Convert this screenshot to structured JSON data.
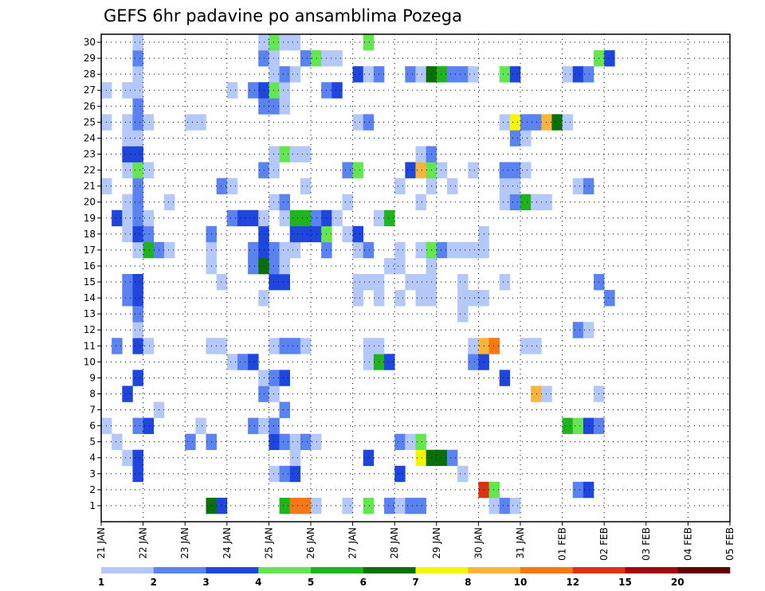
{
  "chart_data": {
    "type": "heatmap",
    "title": "GEFS 6hr padavine po ansamblima Pozega",
    "xlabel": "",
    "ylabel": "",
    "x_tick_labels": [
      "21 JAN",
      "22 JAN",
      "23 JAN",
      "24 JAN",
      "25 JAN",
      "26 JAN",
      "27 JAN",
      "28 JAN",
      "29 JAN",
      "30 JAN",
      "31 JAN",
      "01 FEB",
      "02 FEB",
      "03 FEB",
      "04 FEB",
      "05 FEB"
    ],
    "y_tick_labels": [
      "1",
      "2",
      "3",
      "4",
      "5",
      "6",
      "7",
      "8",
      "9",
      "10",
      "11",
      "12",
      "13",
      "14",
      "15",
      "16",
      "17",
      "18",
      "19",
      "20",
      "21",
      "22",
      "23",
      "24",
      "25",
      "26",
      "27",
      "28",
      "29",
      "30"
    ],
    "time_steps_per_day": 4,
    "n_time_steps": 60,
    "n_members": 30,
    "grid": true,
    "colorbar": {
      "labels": [
        "1",
        "2",
        "3",
        "4",
        "5",
        "6",
        "7",
        "8",
        "10",
        "12",
        "15",
        "20"
      ],
      "colors": [
        "#b4c8fa",
        "#5a82f0",
        "#1e46dc",
        "#64e650",
        "#1eb41e",
        "#0a700a",
        "#f5f50a",
        "#fab43c",
        "#f57814",
        "#dc3214",
        "#a00a0a",
        "#640000"
      ]
    },
    "cells": [
      [
        1,
        10,
        5
      ],
      [
        1,
        11,
        2
      ],
      [
        1,
        17,
        4
      ],
      [
        1,
        18,
        8
      ],
      [
        1,
        19,
        8
      ],
      [
        1,
        20,
        0
      ],
      [
        1,
        23,
        0
      ],
      [
        1,
        25,
        3
      ],
      [
        1,
        27,
        1
      ],
      [
        1,
        28,
        0
      ],
      [
        1,
        29,
        1
      ],
      [
        1,
        30,
        1
      ],
      [
        1,
        37,
        0
      ],
      [
        1,
        38,
        1
      ],
      [
        1,
        39,
        0
      ],
      [
        2,
        36,
        9
      ],
      [
        2,
        37,
        3
      ],
      [
        2,
        45,
        1
      ],
      [
        2,
        46,
        2
      ],
      [
        3,
        3,
        2
      ],
      [
        3,
        16,
        0
      ],
      [
        3,
        17,
        1
      ],
      [
        3,
        18,
        2
      ],
      [
        3,
        28,
        2
      ],
      [
        3,
        34,
        0
      ],
      [
        4,
        2,
        0
      ],
      [
        4,
        3,
        2
      ],
      [
        4,
        18,
        0
      ],
      [
        4,
        25,
        2
      ],
      [
        4,
        30,
        6
      ],
      [
        4,
        31,
        5
      ],
      [
        4,
        32,
        5
      ],
      [
        4,
        33,
        1
      ],
      [
        5,
        1,
        0
      ],
      [
        5,
        8,
        1
      ],
      [
        5,
        10,
        1
      ],
      [
        5,
        16,
        2
      ],
      [
        5,
        17,
        1
      ],
      [
        5,
        18,
        0
      ],
      [
        5,
        19,
        1
      ],
      [
        5,
        20,
        0
      ],
      [
        5,
        28,
        1
      ],
      [
        5,
        29,
        0
      ],
      [
        5,
        30,
        3
      ],
      [
        6,
        0,
        0
      ],
      [
        6,
        3,
        1
      ],
      [
        6,
        4,
        2
      ],
      [
        6,
        9,
        0
      ],
      [
        6,
        14,
        1
      ],
      [
        6,
        15,
        0
      ],
      [
        6,
        16,
        1
      ],
      [
        6,
        44,
        4
      ],
      [
        6,
        45,
        3
      ],
      [
        6,
        46,
        2
      ],
      [
        6,
        47,
        1
      ],
      [
        7,
        5,
        0
      ],
      [
        7,
        17,
        1
      ],
      [
        8,
        2,
        2
      ],
      [
        8,
        15,
        1
      ],
      [
        8,
        16,
        0
      ],
      [
        8,
        41,
        7
      ],
      [
        8,
        42,
        0
      ],
      [
        8,
        47,
        0
      ],
      [
        9,
        3,
        2
      ],
      [
        9,
        15,
        0
      ],
      [
        9,
        16,
        1
      ],
      [
        9,
        17,
        2
      ],
      [
        9,
        38,
        2
      ],
      [
        10,
        12,
        0
      ],
      [
        10,
        13,
        1
      ],
      [
        10,
        14,
        2
      ],
      [
        10,
        25,
        0
      ],
      [
        10,
        26,
        4
      ],
      [
        10,
        27,
        2
      ],
      [
        10,
        35,
        1
      ],
      [
        10,
        36,
        2
      ],
      [
        11,
        1,
        1
      ],
      [
        11,
        3,
        2
      ],
      [
        11,
        4,
        0
      ],
      [
        11,
        10,
        0
      ],
      [
        11,
        11,
        0
      ],
      [
        11,
        16,
        0
      ],
      [
        11,
        17,
        1
      ],
      [
        11,
        18,
        1
      ],
      [
        11,
        19,
        0
      ],
      [
        11,
        25,
        0
      ],
      [
        11,
        26,
        0
      ],
      [
        11,
        35,
        0
      ],
      [
        11,
        36,
        7
      ],
      [
        11,
        37,
        8
      ],
      [
        11,
        40,
        0
      ],
      [
        11,
        41,
        0
      ],
      [
        12,
        3,
        0
      ],
      [
        12,
        45,
        1
      ],
      [
        12,
        46,
        0
      ],
      [
        13,
        3,
        1
      ],
      [
        13,
        34,
        0
      ],
      [
        14,
        2,
        1
      ],
      [
        14,
        3,
        2
      ],
      [
        14,
        15,
        0
      ],
      [
        14,
        24,
        0
      ],
      [
        14,
        26,
        0
      ],
      [
        14,
        28,
        0
      ],
      [
        14,
        30,
        0
      ],
      [
        14,
        31,
        0
      ],
      [
        14,
        34,
        0
      ],
      [
        14,
        35,
        0
      ],
      [
        14,
        36,
        0
      ],
      [
        14,
        48,
        1
      ],
      [
        15,
        2,
        1
      ],
      [
        15,
        3,
        2
      ],
      [
        15,
        11,
        0
      ],
      [
        15,
        16,
        2
      ],
      [
        15,
        17,
        2
      ],
      [
        15,
        24,
        0
      ],
      [
        15,
        25,
        0
      ],
      [
        15,
        26,
        0
      ],
      [
        15,
        29,
        0
      ],
      [
        15,
        30,
        0
      ],
      [
        15,
        31,
        0
      ],
      [
        15,
        34,
        0
      ],
      [
        15,
        38,
        0
      ],
      [
        15,
        47,
        1
      ],
      [
        16,
        10,
        0
      ],
      [
        16,
        14,
        1
      ],
      [
        16,
        15,
        5
      ],
      [
        16,
        16,
        1
      ],
      [
        16,
        17,
        0
      ],
      [
        16,
        27,
        0
      ],
      [
        16,
        28,
        0
      ],
      [
        16,
        31,
        0
      ],
      [
        17,
        3,
        0
      ],
      [
        17,
        4,
        4
      ],
      [
        17,
        5,
        1
      ],
      [
        17,
        6,
        0
      ],
      [
        17,
        10,
        0
      ],
      [
        17,
        14,
        1
      ],
      [
        17,
        15,
        2
      ],
      [
        17,
        16,
        1
      ],
      [
        17,
        17,
        0
      ],
      [
        17,
        18,
        0
      ],
      [
        17,
        21,
        1
      ],
      [
        17,
        24,
        0
      ],
      [
        17,
        25,
        1
      ],
      [
        17,
        28,
        0
      ],
      [
        17,
        30,
        0
      ],
      [
        17,
        31,
        3
      ],
      [
        17,
        32,
        1
      ],
      [
        17,
        33,
        0
      ],
      [
        17,
        34,
        0
      ],
      [
        17,
        35,
        0
      ],
      [
        17,
        36,
        0
      ],
      [
        18,
        2,
        0
      ],
      [
        18,
        3,
        2
      ],
      [
        18,
        4,
        1
      ],
      [
        18,
        10,
        1
      ],
      [
        18,
        15,
        2
      ],
      [
        18,
        18,
        2
      ],
      [
        18,
        19,
        2
      ],
      [
        18,
        20,
        2
      ],
      [
        18,
        21,
        3
      ],
      [
        18,
        23,
        0
      ],
      [
        18,
        24,
        2
      ],
      [
        18,
        36,
        0
      ],
      [
        19,
        1,
        2
      ],
      [
        19,
        2,
        0
      ],
      [
        19,
        3,
        1
      ],
      [
        19,
        4,
        0
      ],
      [
        19,
        12,
        1
      ],
      [
        19,
        13,
        2
      ],
      [
        19,
        14,
        2
      ],
      [
        19,
        15,
        0
      ],
      [
        19,
        17,
        0
      ],
      [
        19,
        18,
        4
      ],
      [
        19,
        19,
        4
      ],
      [
        19,
        20,
        1
      ],
      [
        19,
        21,
        2
      ],
      [
        19,
        22,
        0
      ],
      [
        19,
        26,
        0
      ],
      [
        19,
        27,
        4
      ],
      [
        20,
        2,
        0
      ],
      [
        20,
        3,
        1
      ],
      [
        20,
        6,
        0
      ],
      [
        20,
        16,
        0
      ],
      [
        20,
        17,
        1
      ],
      [
        20,
        23,
        0
      ],
      [
        20,
        30,
        0
      ],
      [
        20,
        38,
        0
      ],
      [
        20,
        39,
        1
      ],
      [
        20,
        40,
        4
      ],
      [
        20,
        41,
        0
      ],
      [
        20,
        42,
        0
      ],
      [
        21,
        0,
        0
      ],
      [
        21,
        3,
        1
      ],
      [
        21,
        11,
        1
      ],
      [
        21,
        12,
        0
      ],
      [
        21,
        19,
        0
      ],
      [
        21,
        28,
        0
      ],
      [
        21,
        31,
        0
      ],
      [
        21,
        33,
        0
      ],
      [
        21,
        38,
        0
      ],
      [
        21,
        39,
        0
      ],
      [
        21,
        45,
        0
      ],
      [
        21,
        46,
        1
      ],
      [
        22,
        2,
        0
      ],
      [
        22,
        3,
        3
      ],
      [
        22,
        4,
        0
      ],
      [
        22,
        15,
        1
      ],
      [
        22,
        16,
        0
      ],
      [
        22,
        23,
        1
      ],
      [
        22,
        24,
        3
      ],
      [
        22,
        29,
        2
      ],
      [
        22,
        30,
        7
      ],
      [
        22,
        31,
        3
      ],
      [
        22,
        32,
        0
      ],
      [
        22,
        35,
        0
      ],
      [
        22,
        38,
        1
      ],
      [
        22,
        39,
        1
      ],
      [
        22,
        40,
        0
      ],
      [
        23,
        2,
        2
      ],
      [
        23,
        3,
        2
      ],
      [
        23,
        16,
        0
      ],
      [
        23,
        17,
        3
      ],
      [
        23,
        18,
        0
      ],
      [
        23,
        19,
        0
      ],
      [
        23,
        30,
        0
      ],
      [
        23,
        31,
        1
      ],
      [
        24,
        2,
        0
      ],
      [
        24,
        3,
        0
      ],
      [
        24,
        39,
        1
      ],
      [
        24,
        40,
        0
      ],
      [
        25,
        0,
        0
      ],
      [
        25,
        2,
        0
      ],
      [
        25,
        3,
        1
      ],
      [
        25,
        4,
        0
      ],
      [
        25,
        8,
        0
      ],
      [
        25,
        9,
        0
      ],
      [
        25,
        24,
        0
      ],
      [
        25,
        25,
        1
      ],
      [
        25,
        38,
        0
      ],
      [
        25,
        39,
        6
      ],
      [
        25,
        40,
        1
      ],
      [
        25,
        41,
        1
      ],
      [
        25,
        42,
        7
      ],
      [
        25,
        43,
        5
      ],
      [
        25,
        44,
        0
      ],
      [
        26,
        3,
        1
      ],
      [
        26,
        15,
        1
      ],
      [
        26,
        16,
        1
      ],
      [
        26,
        17,
        0
      ],
      [
        27,
        0,
        0
      ],
      [
        27,
        2,
        0
      ],
      [
        27,
        3,
        0
      ],
      [
        27,
        12,
        0
      ],
      [
        27,
        14,
        1
      ],
      [
        27,
        15,
        2
      ],
      [
        27,
        16,
        3
      ],
      [
        27,
        17,
        0
      ],
      [
        27,
        21,
        1
      ],
      [
        27,
        22,
        2
      ],
      [
        28,
        3,
        0
      ],
      [
        28,
        16,
        0
      ],
      [
        28,
        17,
        1
      ],
      [
        28,
        18,
        0
      ],
      [
        28,
        24,
        2
      ],
      [
        28,
        25,
        0
      ],
      [
        28,
        26,
        1
      ],
      [
        28,
        29,
        1
      ],
      [
        28,
        30,
        0
      ],
      [
        28,
        31,
        5
      ],
      [
        28,
        32,
        4
      ],
      [
        28,
        33,
        1
      ],
      [
        28,
        34,
        1
      ],
      [
        28,
        35,
        0
      ],
      [
        28,
        38,
        3
      ],
      [
        28,
        39,
        2
      ],
      [
        28,
        44,
        0
      ],
      [
        28,
        45,
        2
      ],
      [
        28,
        46,
        1
      ],
      [
        29,
        3,
        1
      ],
      [
        29,
        15,
        1
      ],
      [
        29,
        16,
        0
      ],
      [
        29,
        19,
        1
      ],
      [
        29,
        20,
        3
      ],
      [
        29,
        21,
        0
      ],
      [
        29,
        22,
        0
      ],
      [
        29,
        47,
        3
      ],
      [
        29,
        48,
        2
      ],
      [
        30,
        3,
        0
      ],
      [
        30,
        15,
        0
      ],
      [
        30,
        16,
        3
      ],
      [
        30,
        17,
        0
      ],
      [
        30,
        18,
        0
      ],
      [
        30,
        25,
        3
      ]
    ]
  }
}
